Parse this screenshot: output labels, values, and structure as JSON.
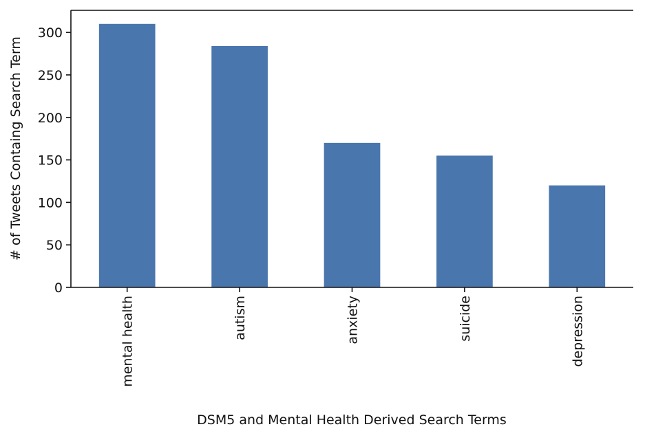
{
  "chart_data": {
    "type": "bar",
    "categories": [
      "mental health",
      "autism",
      "anxiety",
      "suicide",
      "depression"
    ],
    "values": [
      310,
      284,
      170,
      155,
      120
    ],
    "xlabel": "DSM5 and Mental Health Derived Search Terms",
    "ylabel": "# of Tweets Containg Search Term",
    "ylim": [
      0,
      326
    ],
    "yticks": [
      0,
      50,
      100,
      150,
      200,
      250,
      300
    ],
    "bar_color": "#4a76ae",
    "grid": false,
    "legend": "none"
  }
}
